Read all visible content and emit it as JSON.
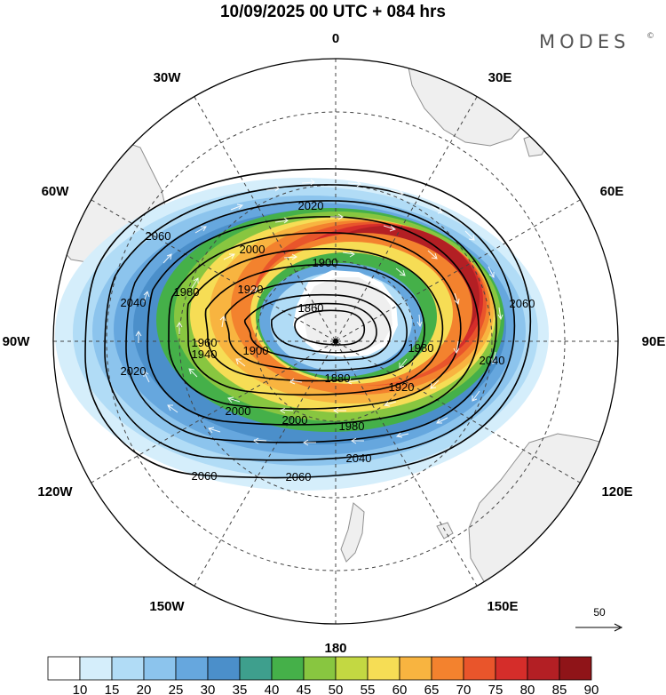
{
  "title": "10/09/2025  00 UTC  + 084 hrs",
  "brand": "MODES",
  "brand_mark": "©",
  "longitudes": [
    {
      "name": "lon-0",
      "text": "0"
    },
    {
      "name": "lon-30e",
      "text": "30E"
    },
    {
      "name": "lon-60e",
      "text": "60E"
    },
    {
      "name": "lon-90e",
      "text": "90E"
    },
    {
      "name": "lon-120e",
      "text": "120E"
    },
    {
      "name": "lon-150e",
      "text": "150E"
    },
    {
      "name": "lon-180",
      "text": "180"
    },
    {
      "name": "lon-150w",
      "text": "150W"
    },
    {
      "name": "lon-120w",
      "text": "120W"
    },
    {
      "name": "lon-90w",
      "text": "90W"
    },
    {
      "name": "lon-60w",
      "text": "60W"
    },
    {
      "name": "lon-30w",
      "text": "30W"
    }
  ],
  "contour_labels": [
    "2060",
    "2060",
    "2060",
    "2060",
    "2040",
    "2040",
    "2040",
    "2020",
    "2020",
    "2000",
    "2000",
    "2000",
    "1980",
    "1980",
    "1980",
    "1960",
    "1940",
    "1920",
    "1920",
    "1900",
    "1900",
    "1880",
    "1860"
  ],
  "wind_shading": {
    "levels": [
      "10",
      "15",
      "20",
      "25",
      "30",
      "35",
      "40",
      "45",
      "50",
      "55",
      "60",
      "65",
      "70",
      "75",
      "80",
      "85",
      "90"
    ],
    "colors": [
      "#ffffff",
      "#d5eefb",
      "#b1dcf6",
      "#8cc4ed",
      "#66a7de",
      "#4b8fca",
      "#3e9f8d",
      "#45b049",
      "#88c640",
      "#c3d842",
      "#f6dd55",
      "#f8b440",
      "#f3822e",
      "#e9552b",
      "#d52d2a",
      "#b31f24",
      "#8f1418"
    ]
  },
  "vector_reference": {
    "label": "50"
  },
  "colors": {
    "land": "#efefef",
    "coast": "#8f8f8f",
    "contour": "#000000",
    "grid": "#444444"
  }
}
